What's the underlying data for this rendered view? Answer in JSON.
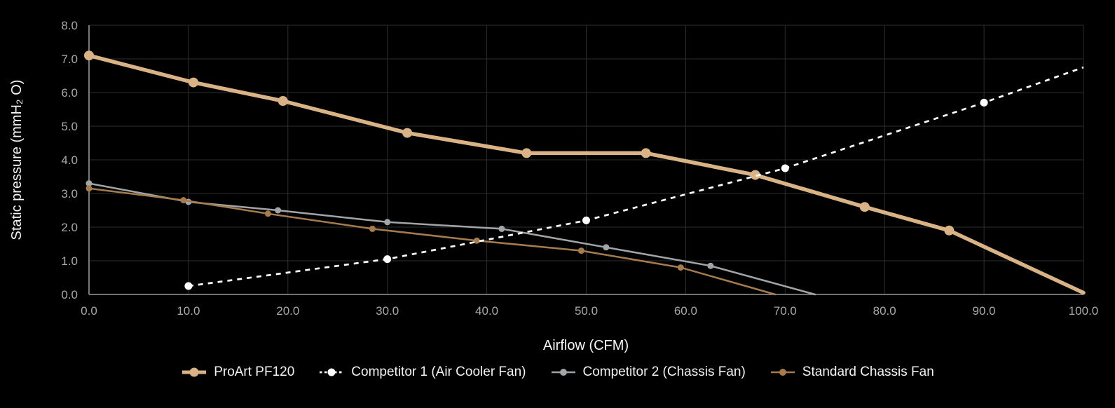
{
  "theme": {
    "background": "#000000",
    "grid_color": "#2E2E2E",
    "axis_color": "#979797",
    "tick_label_color": "#A9A9A9",
    "axis_title_color": "#F5F5F5",
    "legend_text_color": "#F2F2F2"
  },
  "chart_data": {
    "type": "line",
    "title": "",
    "xlabel": "Airflow (CFM)",
    "ylabel": "Static pressure (mmH₂ O)",
    "xlim": [
      0,
      100
    ],
    "ylim": [
      0,
      8
    ],
    "grid": true,
    "legend_position": "bottom",
    "x_ticks": {
      "values": [
        0,
        10,
        20,
        30,
        40,
        50,
        60,
        70,
        80,
        90,
        100
      ],
      "labels": [
        "0.0",
        "10.0",
        "20.0",
        "30.0",
        "40.0",
        "50.0",
        "60.0",
        "70.0",
        "80.0",
        "90.0",
        "100.0"
      ]
    },
    "y_ticks": {
      "values": [
        0,
        1,
        2,
        3,
        4,
        5,
        6,
        7,
        8
      ],
      "labels": [
        "0.0",
        "1.0",
        "2.0",
        "3.0",
        "4.0",
        "5.0",
        "6.0",
        "7.0",
        "8.0"
      ]
    },
    "series": [
      {
        "name": "ProArt PF120",
        "color": "#D9B286",
        "line_style": "solid",
        "line_width": 5.5,
        "marker_radius": 7,
        "marker_on_last_point": false,
        "points": [
          [
            0,
            7.1
          ],
          [
            10.5,
            6.3
          ],
          [
            19.5,
            5.75
          ],
          [
            32,
            4.8
          ],
          [
            44,
            4.2
          ],
          [
            56,
            4.2
          ],
          [
            67,
            3.55
          ],
          [
            78,
            2.6
          ],
          [
            86.5,
            1.9
          ],
          [
            100,
            0.05
          ]
        ]
      },
      {
        "name": "Competitor 1 (Air Cooler Fan)",
        "color": "#FFFFFF",
        "line_style": "dashed",
        "line_width": 2.7,
        "marker_radius": 5.5,
        "marker_on_last_point": false,
        "points": [
          [
            10,
            0.25
          ],
          [
            30,
            1.05
          ],
          [
            50,
            2.2
          ],
          [
            70,
            3.75
          ],
          [
            90,
            5.7
          ],
          [
            100,
            6.75
          ]
        ]
      },
      {
        "name": "Competitor 2 (Chassis Fan)",
        "color": "#A2A5A8",
        "line_style": "solid",
        "line_width": 2.5,
        "marker_radius": 4.5,
        "marker_on_last_point": false,
        "points": [
          [
            0,
            3.3
          ],
          [
            10,
            2.75
          ],
          [
            19,
            2.5
          ],
          [
            30,
            2.15
          ],
          [
            41.5,
            1.95
          ],
          [
            52,
            1.4
          ],
          [
            62.5,
            0.85
          ],
          [
            73,
            0
          ]
        ]
      },
      {
        "name": "Standard Chassis Fan",
        "color": "#A67C4E",
        "line_style": "solid",
        "line_width": 2.5,
        "marker_radius": 4.5,
        "marker_on_last_point": false,
        "points": [
          [
            0,
            3.15
          ],
          [
            9.5,
            2.8
          ],
          [
            18,
            2.4
          ],
          [
            28.5,
            1.95
          ],
          [
            39,
            1.6
          ],
          [
            49.5,
            1.3
          ],
          [
            59.5,
            0.8
          ],
          [
            69,
            0
          ]
        ]
      }
    ]
  }
}
